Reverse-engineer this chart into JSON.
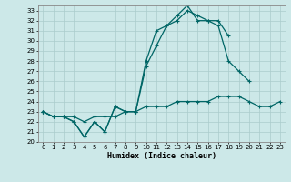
{
  "xlabel": "Humidex (Indice chaleur)",
  "xlim": [
    -0.5,
    23.5
  ],
  "ylim": [
    20,
    33.5
  ],
  "yticks": [
    20,
    21,
    22,
    23,
    24,
    25,
    26,
    27,
    28,
    29,
    30,
    31,
    32,
    33
  ],
  "xticks": [
    0,
    1,
    2,
    3,
    4,
    5,
    6,
    7,
    8,
    9,
    10,
    11,
    12,
    13,
    14,
    15,
    16,
    17,
    18,
    19,
    20,
    21,
    22,
    23
  ],
  "bg_color": "#cce8e8",
  "grid_color": "#aacccc",
  "line_color": "#006666",
  "line1_x": [
    0,
    1,
    2,
    3,
    4,
    5,
    6,
    7,
    8,
    9,
    10,
    11,
    12,
    13,
    14,
    15,
    16,
    17,
    18
  ],
  "line1_y": [
    23.0,
    22.5,
    22.5,
    22.0,
    20.5,
    22.0,
    21.0,
    23.5,
    23.0,
    23.0,
    28.0,
    31.0,
    31.5,
    32.0,
    33.0,
    32.5,
    32.0,
    32.0,
    30.5
  ],
  "line2_x": [
    0,
    1,
    2,
    3,
    4,
    5,
    6,
    7,
    8,
    9,
    10,
    11,
    12,
    13,
    14,
    15,
    16,
    17,
    18,
    19,
    20
  ],
  "line2_y": [
    23.0,
    22.5,
    22.5,
    22.0,
    20.5,
    22.0,
    21.0,
    23.5,
    23.0,
    23.0,
    27.5,
    29.5,
    31.5,
    32.5,
    33.5,
    32.0,
    32.0,
    31.5,
    28.0,
    27.0,
    26.0
  ],
  "line3_x": [
    0,
    1,
    2,
    3,
    4,
    5,
    6,
    7,
    8,
    9,
    10,
    11,
    12,
    13,
    14,
    15,
    16,
    17,
    18,
    19,
    20,
    21,
    22,
    23
  ],
  "line3_y": [
    23.0,
    22.5,
    22.5,
    22.5,
    22.0,
    22.5,
    22.5,
    22.5,
    23.0,
    23.0,
    23.5,
    23.5,
    23.5,
    24.0,
    24.0,
    24.0,
    24.0,
    24.5,
    24.5,
    24.5,
    24.0,
    23.5,
    23.5,
    24.0
  ],
  "marker_size": 2.5,
  "line_width": 0.9
}
